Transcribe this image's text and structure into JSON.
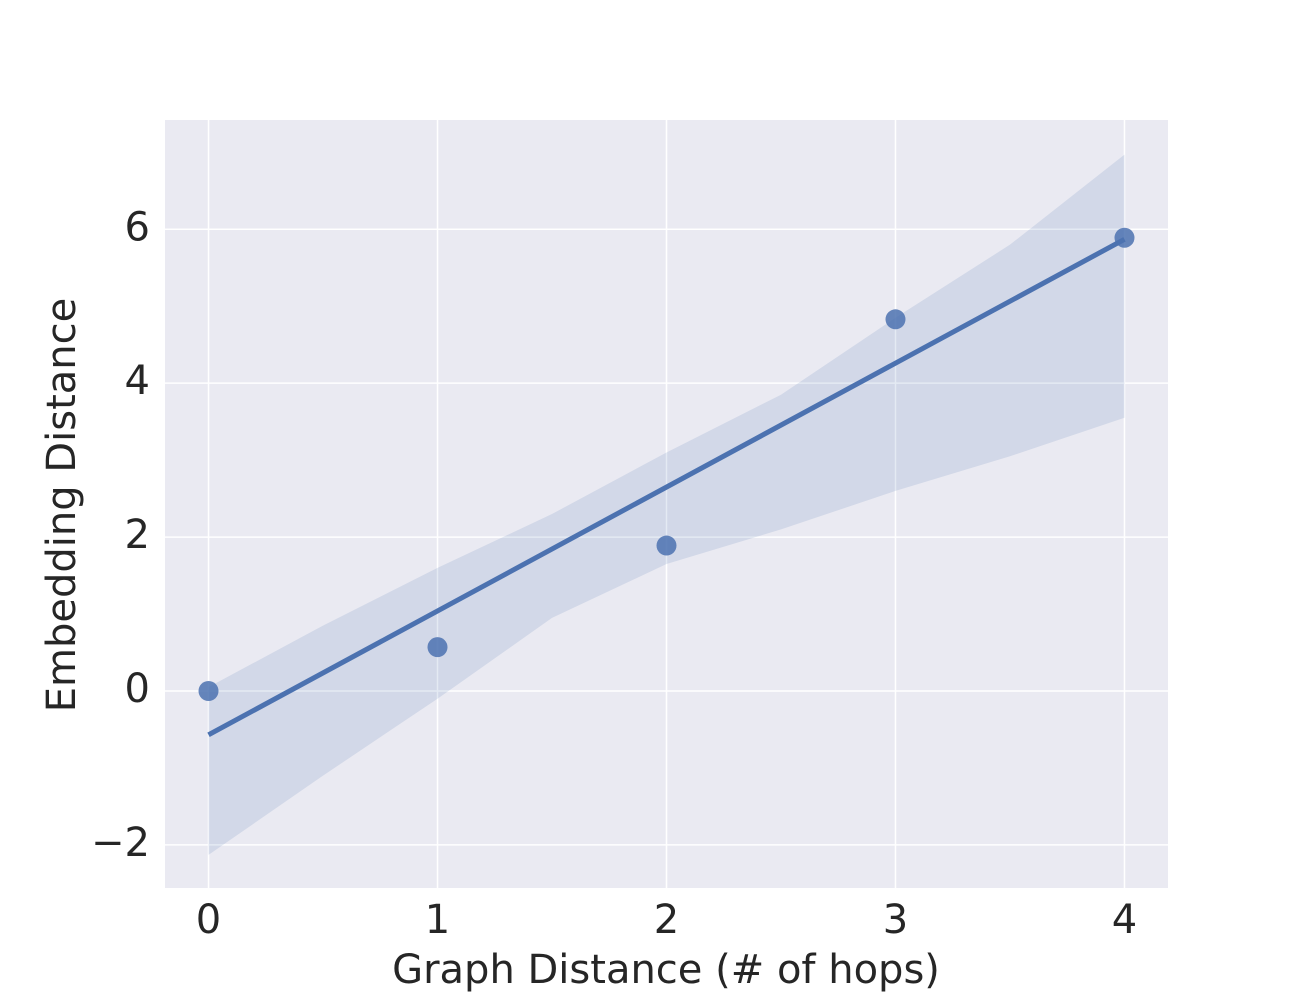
{
  "chart_data": {
    "type": "scatter",
    "x_label": "Graph Distance (# of hops)",
    "y_label": "Embedding Distance",
    "color": "#4c72b0",
    "background": "#eaeaf2",
    "grid": true,
    "points": {
      "x": [
        0,
        1,
        2,
        3,
        4
      ],
      "values": [
        0,
        0.57,
        1.89,
        4.83,
        5.89
      ]
    },
    "fit": {
      "x": [
        0,
        4
      ],
      "values": [
        -0.57,
        5.87
      ]
    },
    "ci": {
      "x": [
        0,
        0.5,
        1,
        1.5,
        2,
        2.5,
        3,
        3.5,
        4
      ],
      "upper": [
        0.05,
        0.85,
        1.6,
        2.3,
        3.1,
        3.85,
        4.85,
        5.8,
        6.97
      ],
      "lower": [
        -2.13,
        -1.1,
        -0.1,
        0.95,
        1.65,
        2.1,
        2.6,
        3.05,
        3.55
      ]
    },
    "xlim": [
      -0.19,
      4.19
    ],
    "ylim": [
      -2.56,
      7.42
    ],
    "xticks": [
      0,
      1,
      2,
      3,
      4
    ],
    "yticks": [
      {
        "value": -2,
        "label": "−2"
      },
      0,
      2,
      4,
      6
    ]
  }
}
